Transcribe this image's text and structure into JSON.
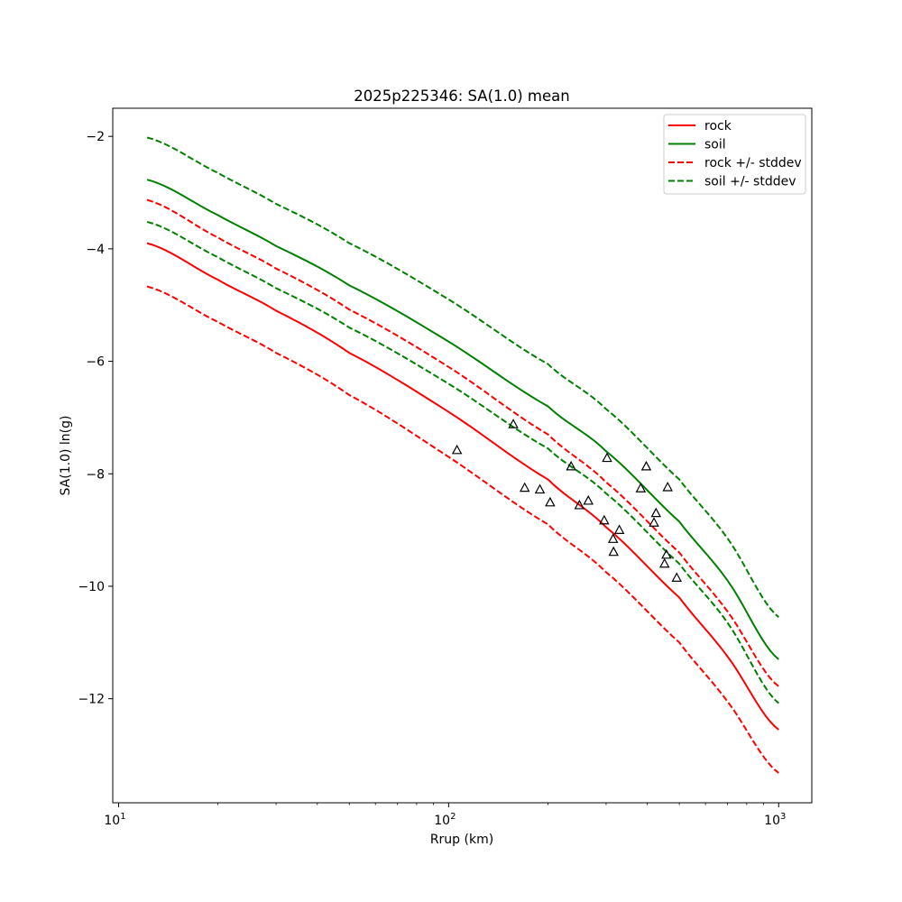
{
  "chart_data": {
    "type": "line",
    "title": "2025p225346: SA(1.0) mean",
    "xlabel": "Rrup (km)",
    "ylabel": "SA(1.0) ln(g)",
    "xscale": "log",
    "xlim": [
      9.6,
      1260
    ],
    "ylim": [
      -13.85,
      -1.5
    ],
    "xticks": [
      {
        "value": 10,
        "base": "10",
        "exp": "1"
      },
      {
        "value": 100,
        "base": "10",
        "exp": "2"
      },
      {
        "value": 1000,
        "base": "10",
        "exp": "3"
      }
    ],
    "yticks": [
      {
        "value": -12,
        "label": "−12"
      },
      {
        "value": -10,
        "label": "−10"
      },
      {
        "value": -8,
        "label": "−8"
      },
      {
        "value": -6,
        "label": "−6"
      },
      {
        "value": -4,
        "label": "−4"
      },
      {
        "value": -2,
        "label": "−2"
      }
    ],
    "grid": false,
    "legend_position": "top-right",
    "x": [
      12.2,
      20,
      30,
      50,
      100,
      200,
      300,
      500,
      700,
      1000
    ],
    "series": [
      {
        "name": "rock",
        "color": "#ff0000",
        "style": "solid",
        "legend": true,
        "values": [
          -3.9,
          -4.55,
          -5.1,
          -5.85,
          -6.9,
          -8.1,
          -8.95,
          -10.2,
          -11.25,
          -12.55
        ]
      },
      {
        "name": "soil",
        "color": "#008000",
        "style": "solid",
        "legend": true,
        "values": [
          -2.77,
          -3.4,
          -3.95,
          -4.65,
          -5.65,
          -6.8,
          -7.6,
          -8.85,
          -9.9,
          -11.3
        ]
      },
      {
        "name": "rock +/- stddev",
        "color": "#ff0000",
        "style": "dashed",
        "legend": true,
        "values": [
          -3.13,
          -3.8,
          -4.35,
          -5.08,
          -6.1,
          -7.3,
          -8.15,
          -9.4,
          -10.45,
          -11.78
        ]
      },
      {
        "name": "",
        "color": "#ff0000",
        "style": "dashed",
        "legend": false,
        "values": [
          -4.67,
          -5.3,
          -5.85,
          -6.6,
          -7.7,
          -8.9,
          -9.75,
          -11.0,
          -12.05,
          -13.32
        ]
      },
      {
        "name": "soil +/- stddev",
        "color": "#008000",
        "style": "dashed",
        "legend": true,
        "values": [
          -2.02,
          -2.65,
          -3.2,
          -3.9,
          -4.9,
          -6.05,
          -6.85,
          -8.1,
          -9.15,
          -10.55
        ]
      },
      {
        "name": "",
        "color": "#008000",
        "style": "dashed",
        "legend": false,
        "values": [
          -3.52,
          -4.15,
          -4.7,
          -5.4,
          -6.4,
          -7.55,
          -8.35,
          -9.6,
          -10.65,
          -12.08
        ]
      }
    ],
    "observations": {
      "marker": "triangle",
      "color": "#000000",
      "points": [
        {
          "x": 106,
          "y": -7.58
        },
        {
          "x": 157,
          "y": -7.12
        },
        {
          "x": 170,
          "y": -8.25
        },
        {
          "x": 189,
          "y": -8.28
        },
        {
          "x": 203,
          "y": -8.51
        },
        {
          "x": 235,
          "y": -7.87
        },
        {
          "x": 249,
          "y": -8.56
        },
        {
          "x": 265,
          "y": -8.48
        },
        {
          "x": 296,
          "y": -8.83
        },
        {
          "x": 302,
          "y": -7.72
        },
        {
          "x": 315,
          "y": -9.16
        },
        {
          "x": 316,
          "y": -9.39
        },
        {
          "x": 329,
          "y": -9.0
        },
        {
          "x": 382,
          "y": -8.26
        },
        {
          "x": 397,
          "y": -7.87
        },
        {
          "x": 419,
          "y": -8.87
        },
        {
          "x": 425,
          "y": -8.7
        },
        {
          "x": 451,
          "y": -9.6
        },
        {
          "x": 457,
          "y": -9.44
        },
        {
          "x": 461,
          "y": -8.24
        },
        {
          "x": 491,
          "y": -9.85
        }
      ]
    }
  }
}
